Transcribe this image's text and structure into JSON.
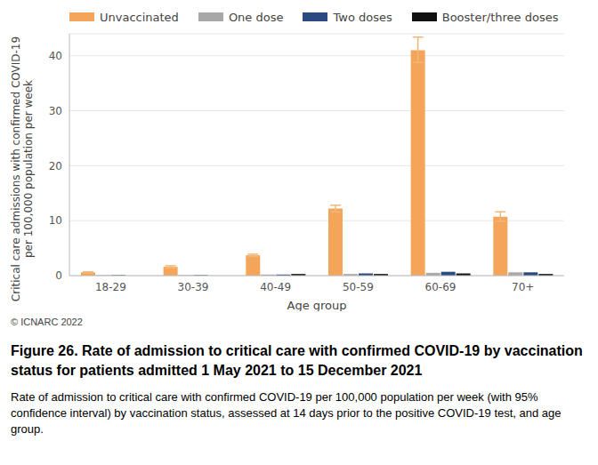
{
  "chart_data": {
    "type": "bar",
    "title": "Figure 26. Rate of admission to critical care with confirmed COVID-19 by vaccination status for patients admitted 1 May 2021 to 15 December 2021",
    "subtitle": "Rate of admission to critical care with confirmed COVID-19 per 100,000 population per week (with 95% confidence interval) by vaccination status, assessed at 14 days prior to the positive COVID-19 test, and age group.",
    "annotations": [
      "© ICNARC 2022"
    ],
    "x_label": "Age group",
    "y_label": [
      "Critical care admissions with confirmed COVID-19",
      "per 100,000 population per week"
    ],
    "categories": [
      "18-29",
      "30-39",
      "40-49",
      "50-59",
      "60-69",
      "70+"
    ],
    "series": [
      {
        "name": "Unvaccinated",
        "color": "#f5a55a",
        "values": [
          0.6,
          1.6,
          3.7,
          12.2,
          41.0,
          10.7
        ],
        "ci_low": [
          0.5,
          1.4,
          3.5,
          11.6,
          38.8,
          9.9
        ],
        "ci_high": [
          0.7,
          1.8,
          3.9,
          12.8,
          43.4,
          11.6
        ]
      },
      {
        "name": "One dose",
        "color": "#a8a8a8",
        "values": [
          0.1,
          0.1,
          0.2,
          0.3,
          0.5,
          0.6
        ]
      },
      {
        "name": "Two doses",
        "color": "#2a4a80",
        "values": [
          0.1,
          0.1,
          0.2,
          0.4,
          0.7,
          0.6
        ]
      },
      {
        "name": "Booster/three doses",
        "color": "#111111",
        "values": [
          0,
          0,
          0.3,
          0.3,
          0.4,
          0.3
        ]
      }
    ],
    "ylim": [
      0,
      44
    ],
    "yticks": [
      0,
      10,
      20,
      30,
      40
    ],
    "grid": true,
    "legend": "top"
  }
}
